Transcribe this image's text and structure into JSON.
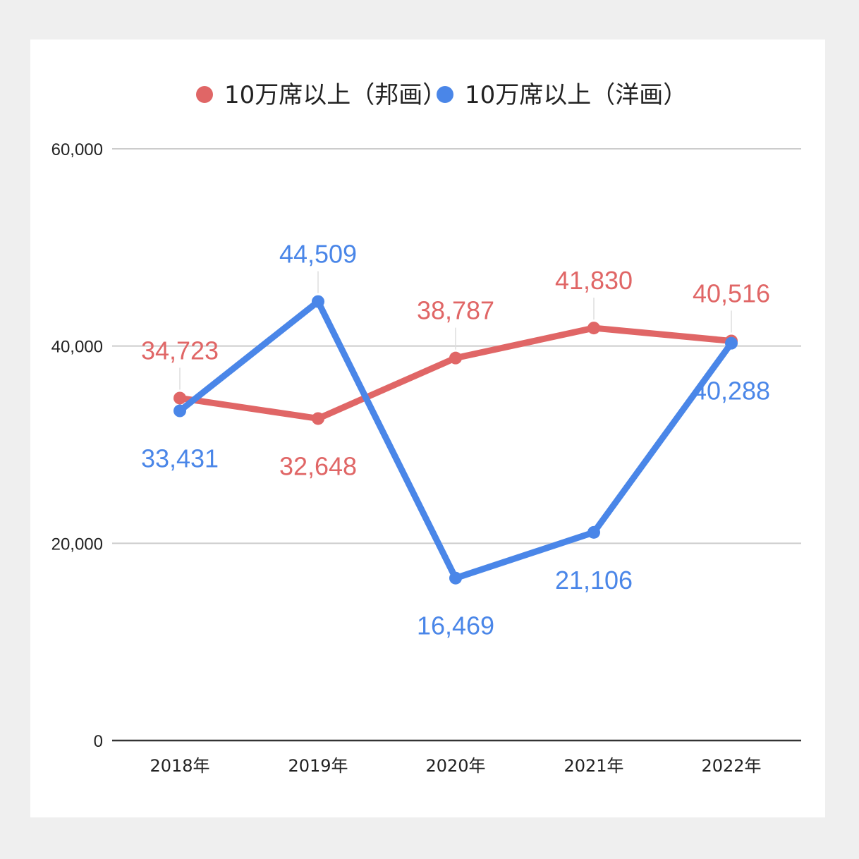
{
  "chart_data": {
    "type": "line",
    "title": "",
    "xlabel": "",
    "ylabel": "",
    "categories": [
      "2018年",
      "2019年",
      "2020年",
      "2021年",
      "2022年"
    ],
    "ylim": [
      0,
      60000
    ],
    "yticks": [
      0,
      20000,
      40000,
      60000
    ],
    "ytick_labels": [
      "0",
      "20,000",
      "40,000",
      "60,000"
    ],
    "grid": true,
    "legend_position": "top",
    "series": [
      {
        "name": "10万席以上（邦画）",
        "color": "#e06666",
        "values": [
          34723,
          32648,
          38787,
          41830,
          40516
        ],
        "labels": [
          "34,723",
          "32,648",
          "38,787",
          "41,830",
          "40,516"
        ],
        "label_placement": [
          "above",
          "below",
          "above",
          "above",
          "above"
        ]
      },
      {
        "name": "10万席以上（洋画）",
        "color": "#4a86e8",
        "values": [
          33431,
          44509,
          16469,
          21106,
          40288
        ],
        "labels": [
          "33,431",
          "44,509",
          "16,469",
          "21,106",
          "40,288"
        ],
        "label_placement": [
          "below",
          "above",
          "below",
          "below",
          "below"
        ]
      }
    ]
  }
}
